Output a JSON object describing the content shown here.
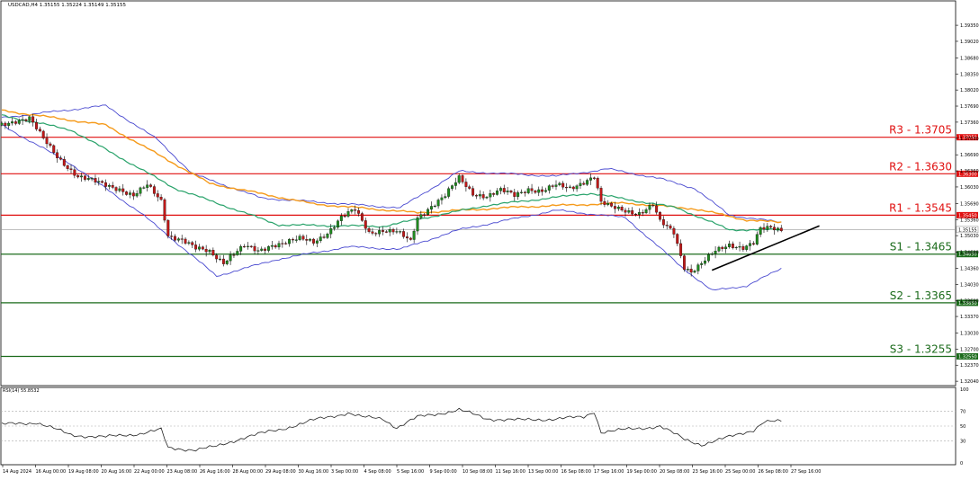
{
  "header": {
    "info": "USDCAD,H4  1.35155 1.35224 1.35149 1.35155"
  },
  "colors": {
    "support": "#1b6b1b",
    "resistance": "#e01010",
    "bollinger": "#4a4ad0",
    "ma_orange": "#f59a1a",
    "ma_green": "#2aa36b",
    "candle_up": "#1f8a1f",
    "candle_down": "#c01818",
    "trendline": "#000000",
    "rsi": "#222222"
  },
  "chart_data": [
    {
      "type": "line",
      "title": "USDCAD,H4",
      "ylim": [
        1.3195,
        1.3985
      ],
      "y_ticks": [
        "1.39350",
        "1.39020",
        "1.38680",
        "1.38350",
        "1.38020",
        "1.37690",
        "1.37360",
        "1.37030",
        "1.36690",
        "1.36360",
        "1.36030",
        "1.35690",
        "1.35360",
        "1.35030",
        "1.34690",
        "1.34360",
        "1.34030",
        "1.33690",
        "1.33370",
        "1.33030",
        "1.32700",
        "1.32370",
        "1.32040"
      ],
      "x_ticks": [
        "14 Aug 2024",
        "16 Aug 00:00",
        "19 Aug 08:00",
        "20 Aug 16:00",
        "22 Aug 00:00",
        "23 Aug 08:00",
        "26 Aug 16:00",
        "28 Aug 00:00",
        "29 Aug 08:00",
        "30 Aug 16:00",
        "3 Sep 00:00",
        "4 Sep 08:00",
        "5 Sep 16:00",
        "9 Sep 00:00",
        "10 Sep 08:00",
        "11 Sep 16:00",
        "13 Sep 00:00",
        "16 Sep 08:00",
        "17 Sep 16:00",
        "19 Sep 00:00",
        "20 Sep 08:00",
        "23 Sep 16:00",
        "25 Sep 00:00",
        "26 Sep 08:00",
        "27 Sep 16:00"
      ],
      "levels": [
        {
          "name": "R3 - 1.3705",
          "value": 1.3705,
          "tag": "1.37050",
          "kind": "resistance"
        },
        {
          "name": "R2 - 1.3630",
          "value": 1.363,
          "tag": "1.36300",
          "kind": "resistance"
        },
        {
          "name": "R1 - 1.3545",
          "value": 1.3545,
          "tag": "1.35450",
          "kind": "resistance"
        },
        {
          "name": "S1 - 1.3465",
          "value": 1.3465,
          "tag": "1.34650",
          "kind": "support"
        },
        {
          "name": "S2 - 1.3365",
          "value": 1.3365,
          "tag": "1.33650",
          "kind": "support"
        },
        {
          "name": "S3 - 1.3255",
          "value": 1.3255,
          "tag": "1.32550",
          "kind": "support"
        }
      ],
      "current_price": {
        "value": 1.35155,
        "tag": "1.35155"
      },
      "close_anchors": [
        [
          0,
          1.373
        ],
        [
          4,
          1.374
        ],
        [
          8,
          1.3745
        ],
        [
          12,
          1.37
        ],
        [
          16,
          1.3665
        ],
        [
          22,
          1.3625
        ],
        [
          28,
          1.361
        ],
        [
          34,
          1.36
        ],
        [
          38,
          1.3585
        ],
        [
          42,
          1.3605
        ],
        [
          46,
          1.3575
        ],
        [
          48,
          1.3505
        ],
        [
          52,
          1.3495
        ],
        [
          56,
          1.3475
        ],
        [
          60,
          1.347
        ],
        [
          64,
          1.345
        ],
        [
          66,
          1.3462
        ],
        [
          70,
          1.348
        ],
        [
          74,
          1.347
        ],
        [
          78,
          1.3485
        ],
        [
          82,
          1.349
        ],
        [
          86,
          1.3495
        ],
        [
          90,
          1.349
        ],
        [
          94,
          1.351
        ],
        [
          98,
          1.354
        ],
        [
          102,
          1.3555
        ],
        [
          106,
          1.351
        ],
        [
          110,
          1.3515
        ],
        [
          114,
          1.351
        ],
        [
          118,
          1.349
        ],
        [
          120,
          1.354
        ],
        [
          124,
          1.3565
        ],
        [
          128,
          1.3585
        ],
        [
          132,
          1.362
        ],
        [
          136,
          1.359
        ],
        [
          140,
          1.3585
        ],
        [
          144,
          1.3595
        ],
        [
          148,
          1.3585
        ],
        [
          152,
          1.36
        ],
        [
          156,
          1.3595
        ],
        [
          160,
          1.3605
        ],
        [
          164,
          1.36
        ],
        [
          168,
          1.3615
        ],
        [
          171,
          1.3625
        ],
        [
          173,
          1.357
        ],
        [
          176,
          1.356
        ],
        [
          180,
          1.3555
        ],
        [
          184,
          1.355
        ],
        [
          188,
          1.3565
        ],
        [
          190,
          1.353
        ],
        [
          194,
          1.351
        ],
        [
          197,
          1.344
        ],
        [
          199,
          1.343
        ],
        [
          202,
          1.3445
        ],
        [
          206,
          1.347
        ],
        [
          210,
          1.3485
        ],
        [
          214,
          1.348
        ],
        [
          217,
          1.3487
        ],
        [
          219,
          1.3515
        ],
        [
          222,
          1.3518
        ],
        [
          225,
          1.35155
        ]
      ],
      "ma_orange_anchors": [
        [
          0,
          1.376
        ],
        [
          30,
          1.373
        ],
        [
          60,
          1.361
        ],
        [
          90,
          1.3568
        ],
        [
          120,
          1.355
        ],
        [
          150,
          1.3562
        ],
        [
          180,
          1.357
        ],
        [
          200,
          1.3558
        ],
        [
          215,
          1.3535
        ],
        [
          225,
          1.353
        ]
      ],
      "ma_green_anchors": [
        [
          0,
          1.375
        ],
        [
          20,
          1.372
        ],
        [
          50,
          1.36
        ],
        [
          80,
          1.3525
        ],
        [
          110,
          1.3522
        ],
        [
          140,
          1.3565
        ],
        [
          170,
          1.359
        ],
        [
          195,
          1.356
        ],
        [
          210,
          1.3515
        ],
        [
          225,
          1.3515
        ]
      ],
      "bb_upper_anchors": [
        [
          0,
          1.3745
        ],
        [
          30,
          1.377
        ],
        [
          45,
          1.37
        ],
        [
          55,
          1.363
        ],
        [
          75,
          1.358
        ],
        [
          95,
          1.357
        ],
        [
          115,
          1.356
        ],
        [
          132,
          1.3635
        ],
        [
          160,
          1.3625
        ],
        [
          175,
          1.364
        ],
        [
          190,
          1.362
        ],
        [
          200,
          1.36
        ],
        [
          210,
          1.3545
        ],
        [
          225,
          1.353
        ]
      ],
      "bb_lower_anchors": [
        [
          0,
          1.373
        ],
        [
          20,
          1.365
        ],
        [
          40,
          1.355
        ],
        [
          62,
          1.342
        ],
        [
          80,
          1.3455
        ],
        [
          100,
          1.348
        ],
        [
          115,
          1.3475
        ],
        [
          132,
          1.3515
        ],
        [
          160,
          1.3555
        ],
        [
          180,
          1.354
        ],
        [
          196,
          1.344
        ],
        [
          205,
          1.339
        ],
        [
          215,
          1.34
        ],
        [
          225,
          1.3435
        ]
      ],
      "trendline": {
        "from": [
          205,
          1.3432
        ],
        "to": [
          236,
          1.3523
        ]
      }
    },
    {
      "type": "line",
      "title": "RSI(14) 55.8532",
      "ylim": [
        0,
        100
      ],
      "y_ticks": [
        "100",
        "70",
        "50",
        "30",
        "0"
      ],
      "levels": [
        70,
        50,
        30
      ],
      "rsi_anchors": [
        [
          0,
          52
        ],
        [
          10,
          55
        ],
        [
          20,
          38
        ],
        [
          30,
          35
        ],
        [
          40,
          40
        ],
        [
          46,
          45
        ],
        [
          48,
          20
        ],
        [
          56,
          18
        ],
        [
          62,
          22
        ],
        [
          70,
          35
        ],
        [
          80,
          45
        ],
        [
          90,
          58
        ],
        [
          100,
          68
        ],
        [
          104,
          62
        ],
        [
          110,
          60
        ],
        [
          114,
          48
        ],
        [
          120,
          62
        ],
        [
          132,
          72
        ],
        [
          140,
          60
        ],
        [
          150,
          58
        ],
        [
          160,
          60
        ],
        [
          168,
          62
        ],
        [
          171,
          70
        ],
        [
          173,
          42
        ],
        [
          180,
          45
        ],
        [
          190,
          50
        ],
        [
          197,
          32
        ],
        [
          202,
          25
        ],
        [
          210,
          35
        ],
        [
          217,
          45
        ],
        [
          220,
          56
        ],
        [
          225,
          55.85
        ]
      ]
    }
  ]
}
